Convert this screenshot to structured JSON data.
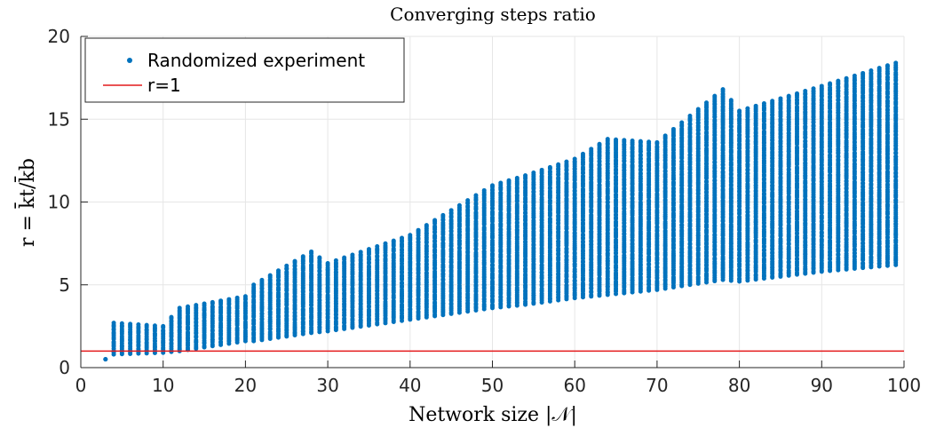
{
  "colors": {
    "series": "#0072BD",
    "reference": "#E41A1C",
    "grid": "#E6E6E6",
    "axis": "#262626"
  },
  "chart_data": {
    "type": "scatter",
    "title": "Converging steps ratio",
    "xlabel": "Network size |𝒩|",
    "ylabel": "r = k̄t/k̄b",
    "xlim": [
      0,
      100
    ],
    "ylim": [
      0,
      20
    ],
    "x_ticks": [
      "0",
      "10",
      "20",
      "30",
      "40",
      "50",
      "60",
      "70",
      "80",
      "90",
      "100"
    ],
    "y_ticks": [
      "0",
      "5",
      "10",
      "15",
      "20"
    ],
    "grid": true,
    "legend_position": "top-left",
    "series": [
      {
        "name": "Randomized experiment",
        "kind": "scatter",
        "x_range": [
          3,
          99
        ],
        "summary_by_x": [
          {
            "x": 3,
            "min": 0.5,
            "max": 0.5
          },
          {
            "x": 4,
            "min": 0.8,
            "max": 2.7
          },
          {
            "x": 10,
            "min": 0.9,
            "max": 2.5
          },
          {
            "x": 12,
            "min": 1.0,
            "max": 3.6
          },
          {
            "x": 20,
            "min": 1.6,
            "max": 4.3
          },
          {
            "x": 21,
            "min": 1.6,
            "max": 5.0
          },
          {
            "x": 28,
            "min": 2.1,
            "max": 7.0
          },
          {
            "x": 30,
            "min": 2.2,
            "max": 6.3
          },
          {
            "x": 40,
            "min": 2.9,
            "max": 8.0
          },
          {
            "x": 50,
            "min": 3.6,
            "max": 11.0
          },
          {
            "x": 54,
            "min": 3.8,
            "max": 11.6
          },
          {
            "x": 60,
            "min": 4.2,
            "max": 12.6
          },
          {
            "x": 64,
            "min": 4.4,
            "max": 13.8
          },
          {
            "x": 70,
            "min": 4.7,
            "max": 13.6
          },
          {
            "x": 78,
            "min": 5.3,
            "max": 16.8
          },
          {
            "x": 80,
            "min": 5.2,
            "max": 15.5
          },
          {
            "x": 90,
            "min": 5.8,
            "max": 17.0
          },
          {
            "x": 99,
            "min": 6.2,
            "max": 18.4
          }
        ]
      },
      {
        "name": "r=1",
        "kind": "line",
        "y": 1
      }
    ]
  }
}
